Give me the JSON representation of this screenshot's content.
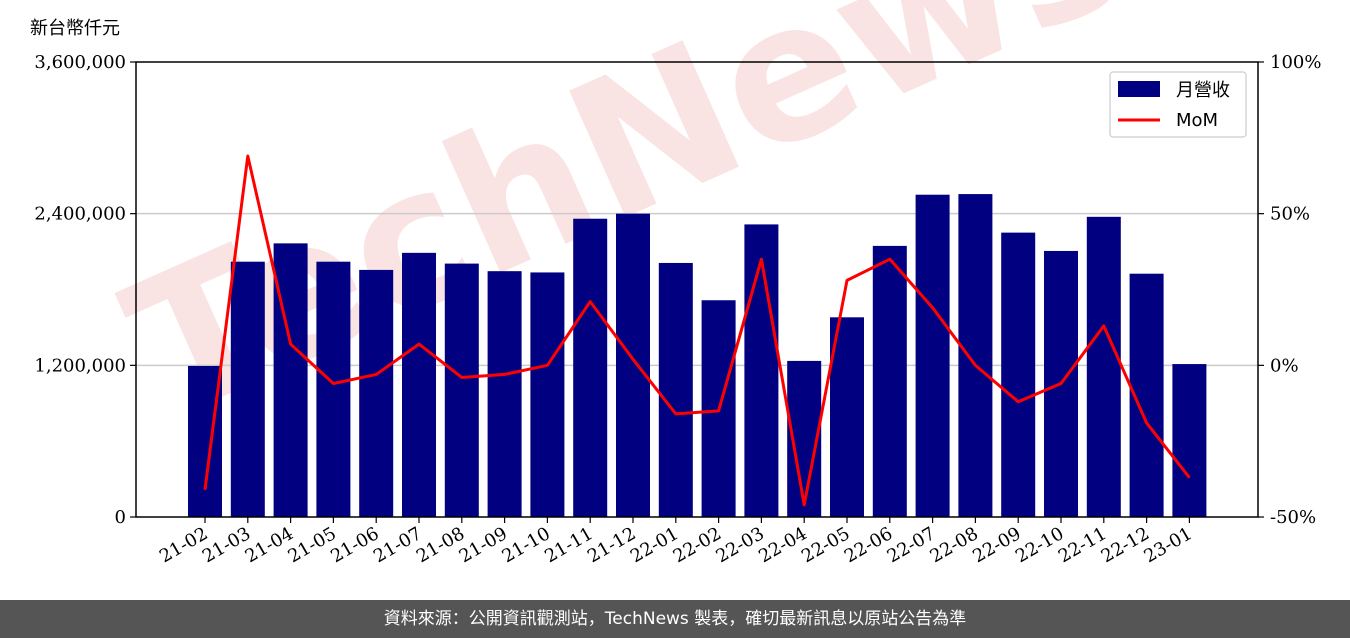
{
  "chart_data": {
    "type": "bar",
    "y_unit_label": "新台幣仟元",
    "categories": [
      "21-02",
      "21-03",
      "21-04",
      "21-05",
      "21-06",
      "21-07",
      "21-08",
      "21-09",
      "21-10",
      "21-11",
      "21-12",
      "22-01",
      "22-02",
      "22-03",
      "22-04",
      "22-05",
      "22-06",
      "22-07",
      "22-08",
      "22-09",
      "22-10",
      "22-11",
      "22-12",
      "23-01"
    ],
    "series": [
      {
        "name": "月營收",
        "kind": "bar",
        "axis": "left",
        "color": "#000080",
        "values": [
          1195000,
          2020000,
          2165000,
          2020000,
          1955000,
          2090000,
          2005000,
          1945000,
          1935000,
          2360000,
          2400000,
          2010000,
          1715000,
          2315000,
          1235000,
          1580000,
          2145000,
          2550000,
          2555000,
          2250000,
          2105000,
          2375000,
          1925000,
          1210000
        ]
      },
      {
        "name": "MoM",
        "kind": "line",
        "axis": "right",
        "color": "#ff0000",
        "values": [
          -41,
          69,
          7,
          -6,
          -3,
          7,
          -4,
          -3,
          0,
          21,
          2,
          -16,
          -15,
          35,
          -46,
          28,
          35,
          19,
          0,
          -12,
          -6,
          13,
          -19,
          -37
        ]
      }
    ],
    "y_left": {
      "min": 0,
      "max": 3600000,
      "ticks": [
        0,
        1200000,
        2400000,
        3600000
      ],
      "tick_labels": [
        "0",
        "1,200,000",
        "2,400,000",
        "3,600,000"
      ]
    },
    "y_right": {
      "min": -50,
      "max": 100,
      "ticks": [
        -50,
        0,
        50,
        100
      ],
      "tick_labels": [
        "-50%",
        "0%",
        "50%",
        "100%"
      ]
    },
    "grid": "horizontal",
    "legend": "top-right"
  },
  "watermark": "TechNews",
  "footer": {
    "text": "資料來源：公開資訊觀測站，TechNews 製表，確切最新訊息以原站公告為準"
  }
}
